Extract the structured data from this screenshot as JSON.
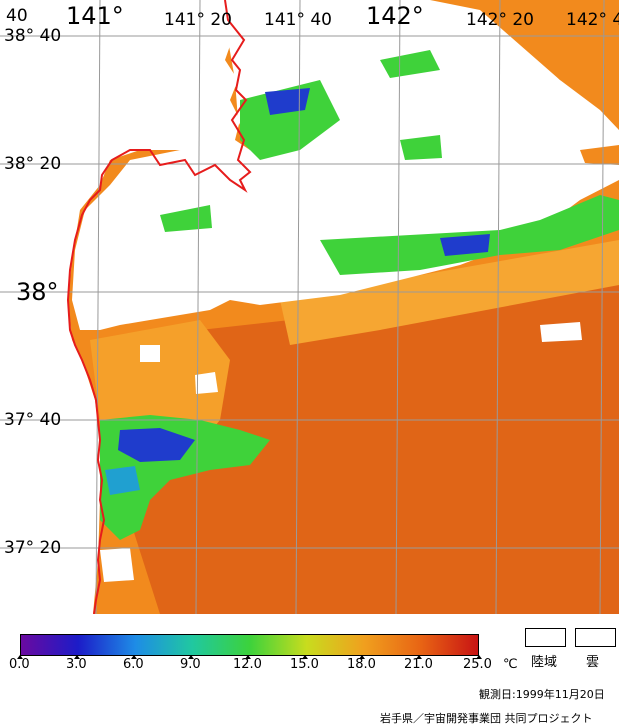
{
  "map": {
    "top_lon_labels": [
      "40",
      "141°",
      "141° 20",
      "141° 40",
      "142°",
      "142° 20",
      "142° 4"
    ],
    "lat_labels": [
      "38° 40",
      "38° 20",
      "38°",
      "37° 40",
      "37° 20"
    ],
    "colors": {
      "sea_warm": "#f28a1d",
      "sea_hot": "#e06517",
      "sea_cool": "#f6a632",
      "cloud_land": "#ffffff",
      "green": "#3fd23a",
      "blue": "#1f3ccc",
      "coast": "#e61c1c",
      "grid": "#9a9a9a"
    }
  },
  "legend": {
    "unit": "℃",
    "ticks": [
      "0.0",
      "3.0",
      "6.0",
      "9.0",
      "12.0",
      "15.0",
      "18.0",
      "21.0",
      "25.0"
    ],
    "gradient": [
      "#6a0aa0",
      "#1c1cc8",
      "#1e8ce6",
      "#20c8a0",
      "#3cd23c",
      "#c8dc1e",
      "#f0a01e",
      "#e86414",
      "#c81414"
    ],
    "land_label": "陸域",
    "cloud_label": "雲"
  },
  "footer": {
    "obs_date": "観測日:1999年11月20日",
    "credit": "岩手県／宇宙開発事業団 共同プロジェクト"
  }
}
